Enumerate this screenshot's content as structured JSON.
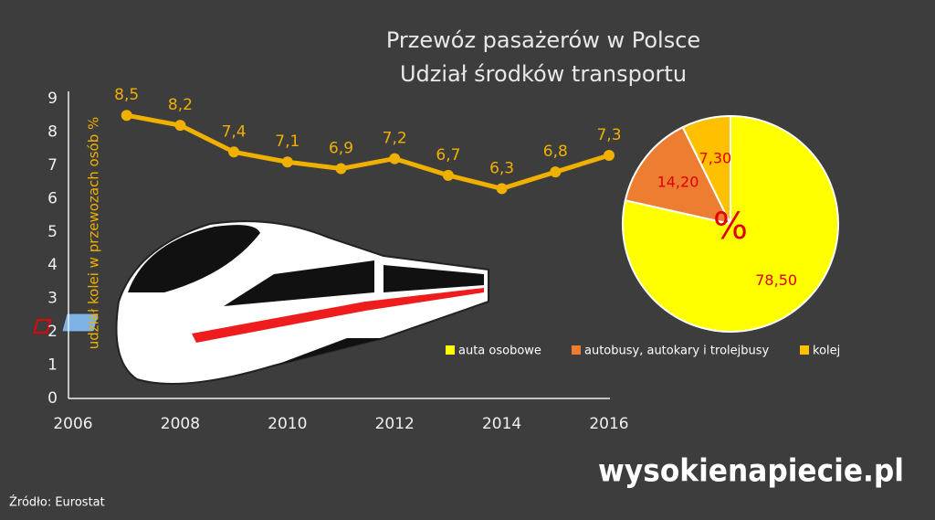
{
  "chart_data": [
    {
      "type": "line",
      "title": "Przewóz pasażerów w Polsce",
      "subtitle": "Udział środków transportu",
      "ylabel": "udział kolei w przewozach osób %",
      "x": [
        2007,
        2008,
        2009,
        2010,
        2011,
        2012,
        2013,
        2014,
        2015,
        2016
      ],
      "values": [
        8.5,
        8.2,
        7.4,
        7.1,
        6.9,
        7.2,
        6.7,
        6.3,
        6.8,
        7.3
      ],
      "value_labels": [
        "8,5",
        "8,2",
        "7,4",
        "7,1",
        "6,9",
        "7,2",
        "6,7",
        "6,3",
        "6,8",
        "7,3"
      ],
      "color": "#f0b000",
      "xlim": [
        2006,
        2016
      ],
      "xticks": [
        2006,
        2008,
        2010,
        2012,
        2014,
        2016
      ],
      "ylim": [
        0,
        9
      ],
      "yticks": [
        0,
        1,
        2,
        3,
        4,
        5,
        6,
        7,
        8,
        9
      ]
    },
    {
      "type": "pie",
      "categories": [
        "auta osobowe",
        "autobusy, autokary i trolejbusy",
        "kolej"
      ],
      "values": [
        78.5,
        14.2,
        7.3
      ],
      "value_labels": [
        "78,50",
        "14,20",
        "7,30"
      ],
      "colors": [
        "#ffff00",
        "#ed7d31",
        "#ffc000"
      ],
      "annotation": "%",
      "legend": "bottom"
    }
  ],
  "source": "Źródło: Eurostat",
  "logo": "wysokienapiecie.pl"
}
